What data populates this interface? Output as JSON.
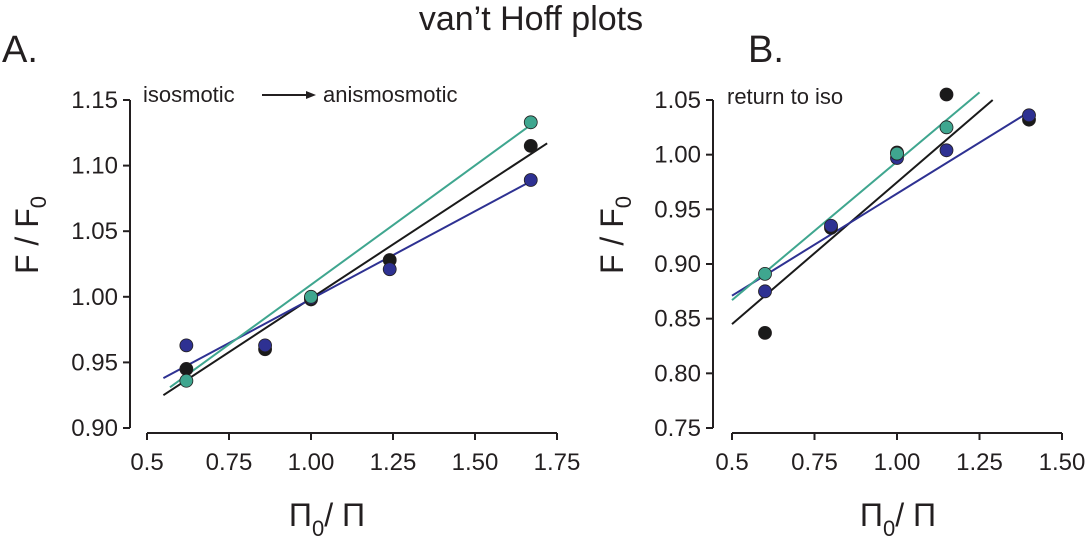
{
  "figure_title": "van’t Hoff plots",
  "chart_data": [
    {
      "panel": "A.",
      "type": "scatter",
      "annotation": {
        "left": "isosmotic",
        "right": "anismosmotic",
        "arrow": true
      },
      "xlabel": {
        "main": "Π",
        "sub": "0",
        "rest": "/ Π"
      },
      "ylabel": {
        "main": "F / F",
        "sub": "0"
      },
      "xlim": [
        0.5,
        1.75
      ],
      "ylim": [
        0.9,
        1.15
      ],
      "xticks": [
        0.5,
        0.75,
        1.0,
        1.25,
        1.5,
        1.75
      ],
      "xtick_labels": [
        "0.5",
        "0.75",
        "1.00",
        "1.25",
        "1.50",
        "1.75"
      ],
      "yticks": [
        0.9,
        0.95,
        1.0,
        1.05,
        1.1,
        1.15
      ],
      "ytick_labels": [
        "0.90",
        "0.95",
        "1.00",
        "1.05",
        "1.10",
        "1.15"
      ],
      "series": [
        {
          "color": "#1a1a1a",
          "x": [
            0.62,
            0.86,
            1.0,
            1.24,
            1.67
          ],
          "y": [
            0.945,
            0.96,
            0.998,
            1.028,
            1.115
          ],
          "fit": {
            "x": [
              0.55,
              1.72
            ],
            "y": [
              0.925,
              1.117
            ]
          }
        },
        {
          "color": "#2e3192",
          "x": [
            0.62,
            0.86,
            1.0,
            1.24,
            1.67
          ],
          "y": [
            0.963,
            0.963,
            0.999,
            1.021,
            1.089
          ],
          "fit": {
            "x": [
              0.55,
              1.67
            ],
            "y": [
              0.938,
              1.088
            ]
          }
        },
        {
          "color": "#3fa68f",
          "x": [
            0.62,
            1.0,
            1.67
          ],
          "y": [
            0.936,
            1.0,
            1.133
          ],
          "fit": {
            "x": [
              0.57,
              1.67
            ],
            "y": [
              0.931,
              1.131
            ]
          }
        }
      ]
    },
    {
      "panel": "B.",
      "type": "scatter",
      "annotation": {
        "left": "return to iso"
      },
      "xlabel": {
        "main": "Π",
        "sub": "0",
        "rest": "/ Π"
      },
      "ylabel": {
        "main": "F / F",
        "sub": "0"
      },
      "xlim": [
        0.5,
        1.5
      ],
      "ylim": [
        0.75,
        1.05
      ],
      "xticks": [
        0.5,
        0.75,
        1.0,
        1.25,
        1.5
      ],
      "xtick_labels": [
        "0.5",
        "0.75",
        "1.00",
        "1.25",
        "1.50"
      ],
      "yticks": [
        0.75,
        0.8,
        0.85,
        0.9,
        0.95,
        1.0,
        1.05
      ],
      "ytick_labels": [
        "0.75",
        "0.80",
        "0.85",
        "0.90",
        "0.95",
        "1.00",
        "1.05"
      ],
      "series": [
        {
          "color": "#1a1a1a",
          "x": [
            0.6,
            0.8,
            1.0,
            1.15,
            1.4
          ],
          "y": [
            0.837,
            0.933,
            1.002,
            1.055,
            1.032
          ],
          "fit": {
            "x": [
              0.5,
              1.29
            ],
            "y": [
              0.845,
              1.05
            ]
          }
        },
        {
          "color": "#2e3192",
          "x": [
            0.6,
            0.8,
            1.0,
            1.15,
            1.4
          ],
          "y": [
            0.875,
            0.935,
            0.997,
            1.004,
            1.036
          ],
          "fit": {
            "x": [
              0.5,
              1.4
            ],
            "y": [
              0.871,
              1.039
            ]
          }
        },
        {
          "color": "#3fa68f",
          "x": [
            0.6,
            1.0,
            1.15
          ],
          "y": [
            0.891,
            1.001,
            1.025
          ],
          "fit": {
            "x": [
              0.5,
              1.25
            ],
            "y": [
              0.867,
              1.057
            ]
          }
        }
      ]
    }
  ]
}
